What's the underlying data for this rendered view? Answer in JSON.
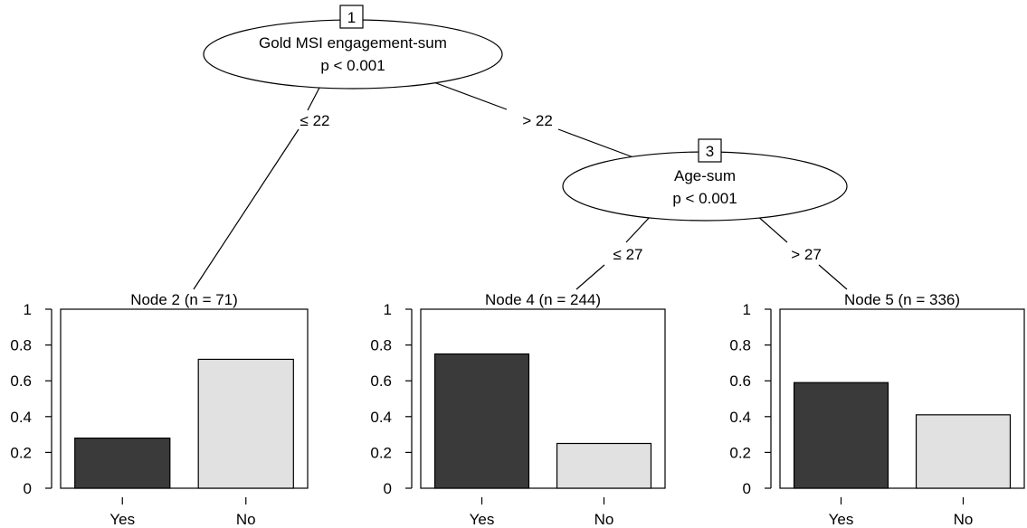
{
  "inner_nodes": [
    {
      "id": "1",
      "variable": "Gold MSI engagement-sum",
      "pvalue": "p < 0.001"
    },
    {
      "id": "3",
      "variable": "Age-sum",
      "pvalue": "p < 0.001"
    }
  ],
  "edges": [
    {
      "from": "1",
      "to": "2",
      "label": "≤ 22"
    },
    {
      "from": "1",
      "to": "3",
      "label": "> 22"
    },
    {
      "from": "3",
      "to": "4",
      "label": "≤ 27"
    },
    {
      "from": "3",
      "to": "5",
      "label": "> 27"
    }
  ],
  "chart_data": [
    {
      "type": "bar",
      "title": "Node 2 (n = 71)",
      "categories": [
        "Yes",
        "No"
      ],
      "values": [
        0.28,
        0.72
      ],
      "ylim": [
        0,
        1
      ],
      "yticks": [
        "0",
        "0.2",
        "0.4",
        "0.6",
        "0.8",
        "1"
      ]
    },
    {
      "type": "bar",
      "title": "Node 4 (n = 244)",
      "categories": [
        "Yes",
        "No"
      ],
      "values": [
        0.75,
        0.25
      ],
      "ylim": [
        0,
        1
      ],
      "yticks": [
        "0",
        "0.2",
        "0.4",
        "0.6",
        "0.8",
        "1"
      ]
    },
    {
      "type": "bar",
      "title": "Node 5 (n = 336)",
      "categories": [
        "Yes",
        "No"
      ],
      "values": [
        0.59,
        0.41
      ],
      "ylim": [
        0,
        1
      ],
      "yticks": [
        "0",
        "0.2",
        "0.4",
        "0.6",
        "0.8",
        "1"
      ]
    }
  ],
  "colors": {
    "yes_bar": "#3a3a3a",
    "no_bar": "#e1e1e1",
    "outline": "#000000"
  }
}
